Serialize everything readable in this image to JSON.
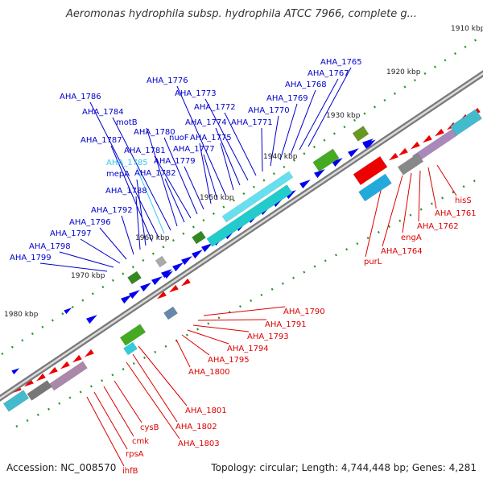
{
  "header": {
    "title": "Aeromonas hydrophila subsp. hydrophila ATCC 7966, complete g..."
  },
  "footer": {
    "accession": "Accession: NC_008570",
    "summary": "Topology: circular; Length: 4,744,448 bp; Genes: 4,281"
  },
  "ruler": {
    "ticks": [
      "1910 kbp",
      "1920 kbp",
      "1930 kbp",
      "1940 kbp",
      "1950 kbp",
      "1960 kbp",
      "1970 kbp",
      "1980 kbp"
    ]
  },
  "labels": {
    "forward": [
      "AHA_1765",
      "AHA_1767",
      "AHA_1768",
      "AHA_1769",
      "AHA_1770",
      "AHA_1771",
      "AHA_1772",
      "AHA_1773",
      "AHA_1774",
      "AHA_1775",
      "AHA_1776",
      "AHA_1777",
      "nuoF",
      "AHA_1779",
      "AHA_1780",
      "AHA_1781",
      "AHA_1782",
      "motB",
      "AHA_1784",
      "AHA_1785",
      "AHA_1786",
      "AHA_1787",
      "mepA",
      "AHA_1788",
      "AHA_1792",
      "AHA_1796",
      "AHA_1797",
      "AHA_1798",
      "AHA_1799"
    ],
    "reverse": [
      "hisS",
      "AHA_1761",
      "AHA_1762",
      "engA",
      "AHA_1764",
      "purL",
      "AHA_1790",
      "AHA_1791",
      "AHA_1793",
      "AHA_1794",
      "AHA_1795",
      "AHA_1800",
      "AHA_1801",
      "AHA_1802",
      "AHA_1803",
      "cysB",
      "cmk",
      "rpsA",
      "ihfB"
    ]
  },
  "colors": {
    "forward_label": "#0000cc",
    "forward_highlight": "#33ccee",
    "reverse_label": "#dd0000",
    "forward_gene": "#0000ee",
    "reverse_gene": "#ee0000",
    "rna": "#22cccc",
    "other": "#44aa22",
    "backbone": "#888888",
    "tick": "#229922"
  }
}
